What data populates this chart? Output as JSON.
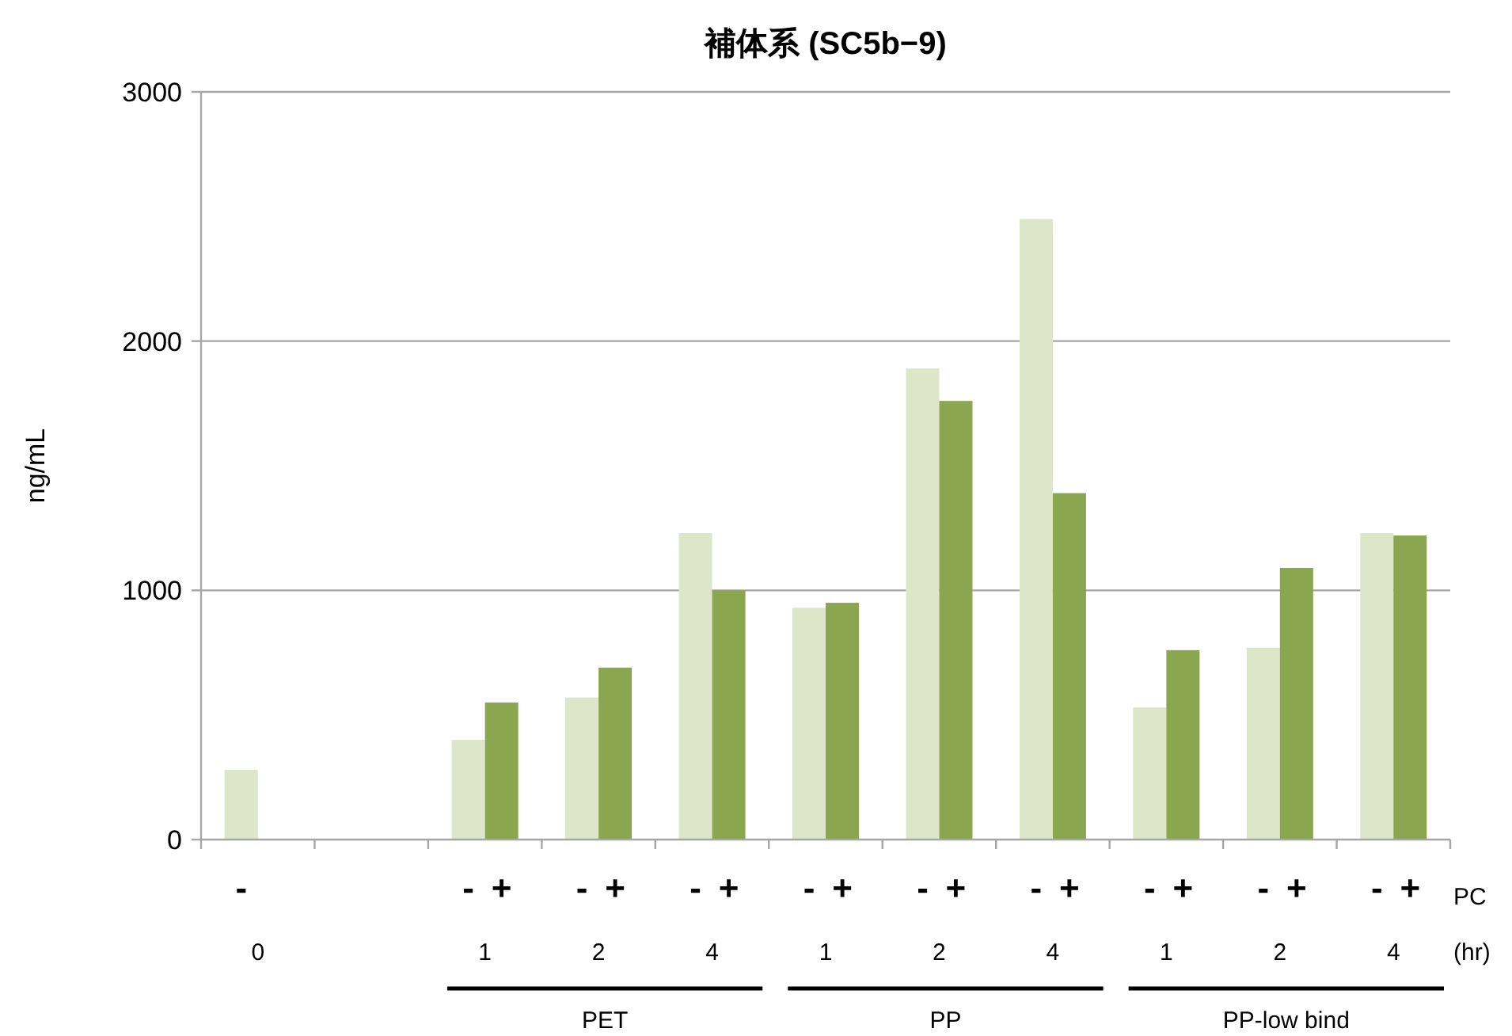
{
  "chart_data": {
    "type": "bar",
    "title": "補体系 (SC5b−9)",
    "ylabel": "ng/mL",
    "categories": [
      "0",
      null,
      "1",
      "2",
      "4",
      "1",
      "2",
      "4",
      "1",
      "2",
      "4"
    ],
    "series": [
      {
        "name": "-",
        "color": "#dde6c8",
        "values": [
          280,
          null,
          400,
          570,
          1230,
          930,
          1890,
          2490,
          530,
          770,
          1230
        ]
      },
      {
        "name": "+",
        "color": "#8aa64e",
        "values": [
          null,
          null,
          550,
          690,
          1000,
          950,
          1760,
          1390,
          760,
          1090,
          1220
        ]
      }
    ],
    "ylim": [
      0,
      3000
    ],
    "yticks": [
      0,
      1000,
      2000,
      3000
    ],
    "grid": "y",
    "annotations": [
      "PC",
      "(hr)",
      "PET",
      "PP",
      "PP-low bind"
    ]
  }
}
